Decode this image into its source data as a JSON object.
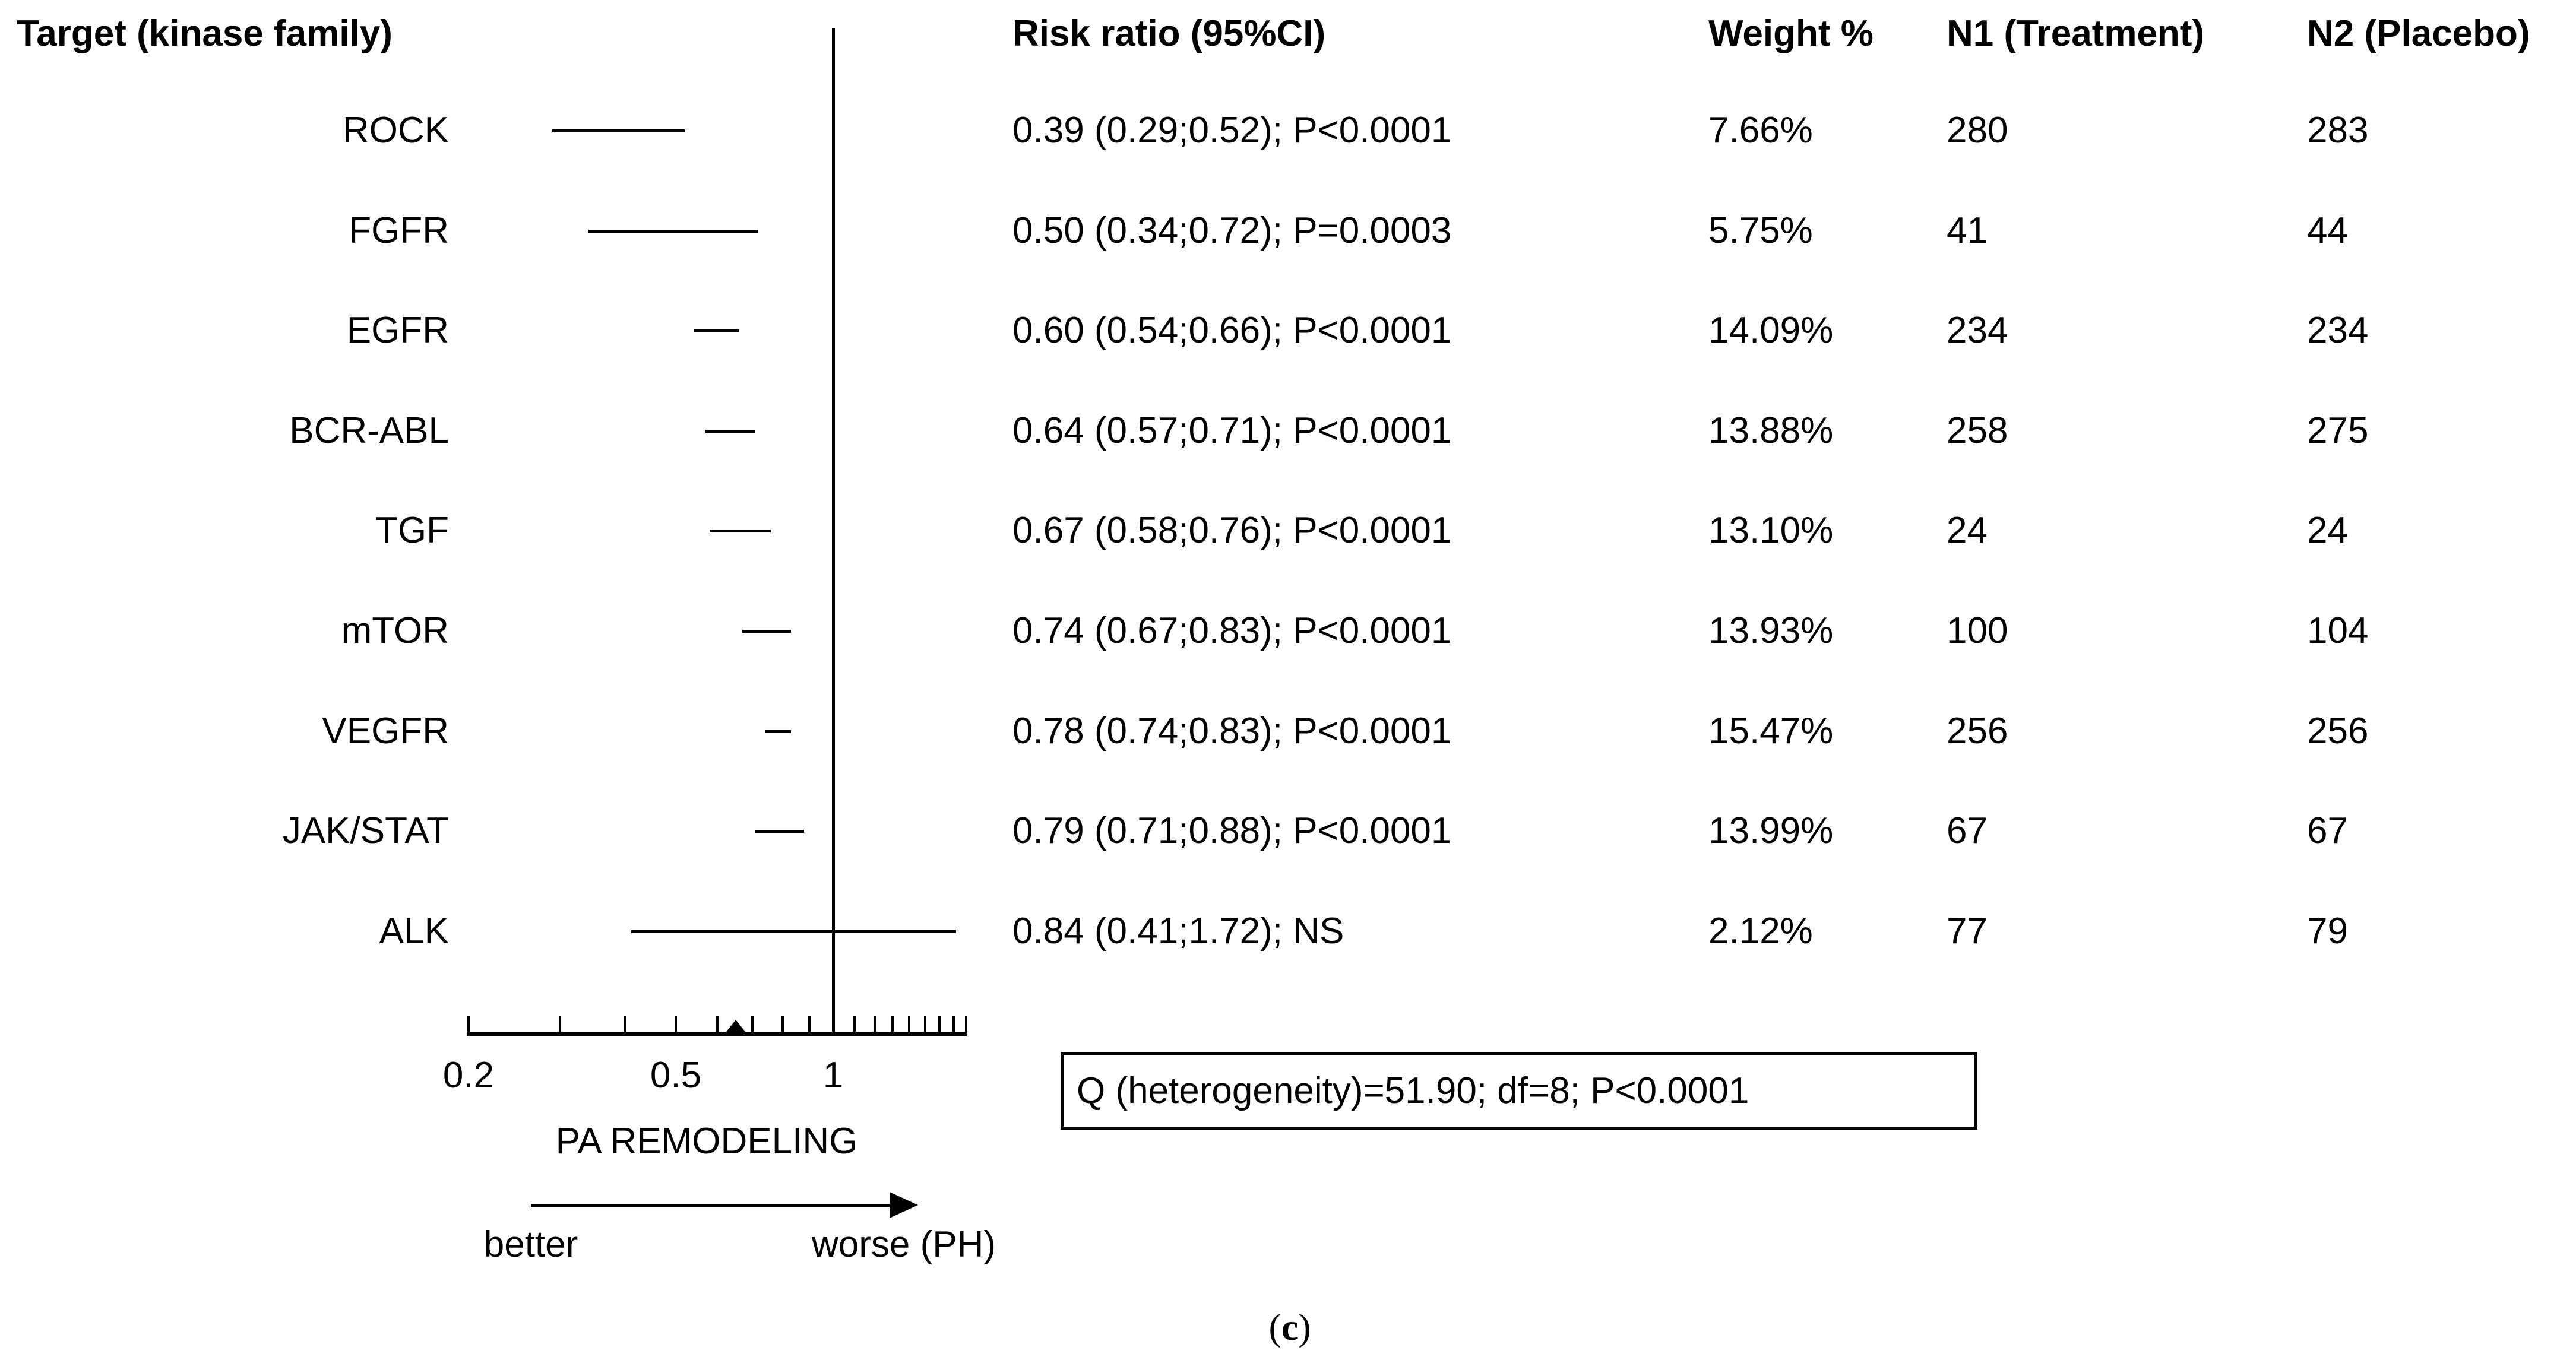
{
  "chart_data": {
    "type": "forest",
    "columns": {
      "target": "Target (kinase family)",
      "risk_ratio": "Risk ratio (95%CI)",
      "weight": "Weight %",
      "n1": "N1 (Treatment)",
      "n2": "N2 (Placebo)"
    },
    "rows": [
      {
        "label": "ROCK",
        "rr": 0.39,
        "lo": 0.29,
        "hi": 0.52,
        "ci_text": "0.39 (0.29;0.52); P<0.0001",
        "weight": "7.66%",
        "n1": "280",
        "n2": "283"
      },
      {
        "label": "FGFR",
        "rr": 0.5,
        "lo": 0.34,
        "hi": 0.72,
        "ci_text": "0.50 (0.34;0.72); P=0.0003",
        "weight": "5.75%",
        "n1": "41",
        "n2": "44"
      },
      {
        "label": "EGFR",
        "rr": 0.6,
        "lo": 0.54,
        "hi": 0.66,
        "ci_text": "0.60 (0.54;0.66); P<0.0001",
        "weight": "14.09%",
        "n1": "234",
        "n2": "234"
      },
      {
        "label": "BCR-ABL",
        "rr": 0.64,
        "lo": 0.57,
        "hi": 0.71,
        "ci_text": "0.64 (0.57;0.71); P<0.0001",
        "weight": "13.88%",
        "n1": "258",
        "n2": "275"
      },
      {
        "label": "TGF",
        "rr": 0.67,
        "lo": 0.58,
        "hi": 0.76,
        "ci_text": "0.67 (0.58;0.76); P<0.0001",
        "weight": "13.10%",
        "n1": "24",
        "n2": "24"
      },
      {
        "label": "mTOR",
        "rr": 0.74,
        "lo": 0.67,
        "hi": 0.83,
        "ci_text": "0.74 (0.67;0.83); P<0.0001",
        "weight": "13.93%",
        "n1": "100",
        "n2": "104"
      },
      {
        "label": "VEGFR",
        "rr": 0.78,
        "lo": 0.74,
        "hi": 0.83,
        "ci_text": "0.78 (0.74;0.83); P<0.0001",
        "weight": "15.47%",
        "n1": "256",
        "n2": "256"
      },
      {
        "label": "JAK/STAT",
        "rr": 0.79,
        "lo": 0.71,
        "hi": 0.88,
        "ci_text": "0.79 (0.71;0.88); P<0.0001",
        "weight": "13.99%",
        "n1": "67",
        "n2": "67"
      },
      {
        "label": "ALK",
        "rr": 0.84,
        "lo": 0.41,
        "hi": 1.72,
        "ci_text": "0.84 (0.41;1.72); NS",
        "weight": "2.12%",
        "n1": "77",
        "n2": "79"
      }
    ],
    "axis": {
      "scale": "log10",
      "min": 0.2,
      "max": 1.8,
      "ref_line": 1,
      "ticks": [
        0.2,
        0.3,
        0.4,
        0.5,
        0.6,
        0.7,
        0.8,
        0.9,
        1.0,
        1.1,
        1.2,
        1.3,
        1.4,
        1.5,
        1.6,
        1.7,
        1.8
      ],
      "labeled_ticks": [
        {
          "v": 0.2,
          "label": "0.2"
        },
        {
          "v": 0.5,
          "label": "0.5"
        },
        {
          "v": 1,
          "label": "1"
        }
      ],
      "xlabel": "PA REMODELING"
    },
    "pooled_marker": 0.65,
    "direction": {
      "left": "better",
      "right": "worse (PH)"
    },
    "heterogeneity": "Q (heterogeneity)=51.90; df=8; P<0.0001",
    "caption": {
      "open": "(",
      "letter": "c",
      "close": ")"
    }
  }
}
